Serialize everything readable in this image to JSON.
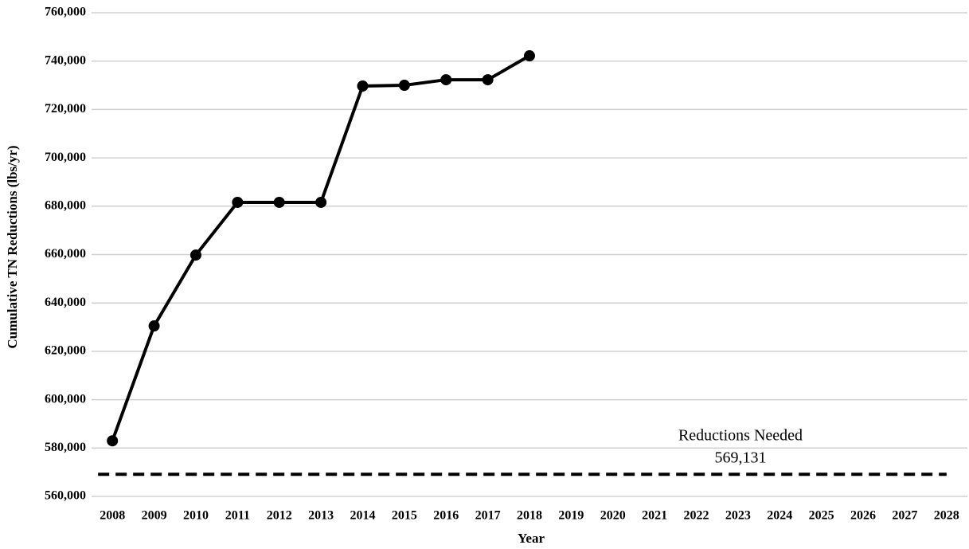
{
  "chart_data": {
    "type": "line",
    "y_label": "Cumulative TN Reductions (lbs/yr)",
    "x_label": "Year",
    "categories": [
      "2008",
      "2009",
      "2010",
      "2011",
      "2012",
      "2013",
      "2014",
      "2015",
      "2016",
      "2017",
      "2018",
      "2019",
      "2020",
      "2021",
      "2022",
      "2023",
      "2024",
      "2025",
      "2026",
      "2027",
      "2028"
    ],
    "values": [
      583000,
      630500,
      659800,
      681600,
      681600,
      681600,
      729700,
      730000,
      732300,
      732300,
      742200,
      null,
      null,
      null,
      null,
      null,
      null,
      null,
      null,
      null,
      null
    ],
    "color": "#000000",
    "target": {
      "name": "Reductions Needed",
      "value": 569131,
      "label": "569,131",
      "color": "#000000"
    },
    "ylim": [
      560000,
      760000
    ],
    "yticks": [
      {
        "value": 560000,
        "label": "560,000"
      },
      {
        "value": 580000,
        "label": "580,000"
      },
      {
        "value": 600000,
        "label": "600,000"
      },
      {
        "value": 620000,
        "label": "620,000"
      },
      {
        "value": 640000,
        "label": "640,000"
      },
      {
        "value": 660000,
        "label": "660,000"
      },
      {
        "value": 680000,
        "label": "680,000"
      },
      {
        "value": 700000,
        "label": "700,000"
      },
      {
        "value": 720000,
        "label": "720,000"
      },
      {
        "value": 740000,
        "label": "740,000"
      },
      {
        "value": 760000,
        "label": "760,000"
      }
    ],
    "grid": true
  }
}
